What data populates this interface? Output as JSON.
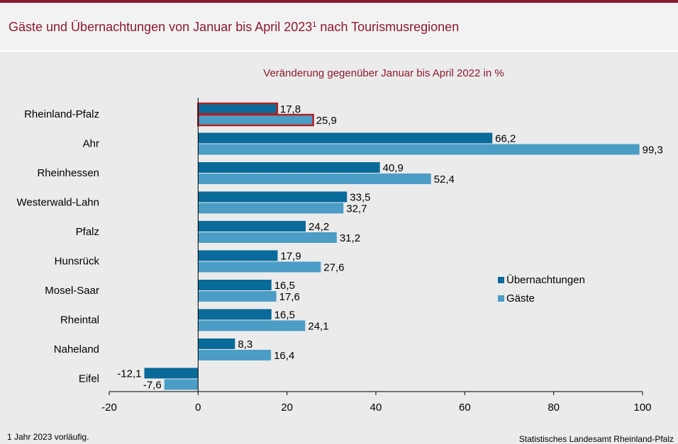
{
  "header": {
    "title": "Gäste und Übernachtungen von Januar bis April 2023",
    "footnote_mark": "1",
    "title_suffix": " nach Tourismusregionen"
  },
  "footer": {
    "note": "1 Jahr  2023  vorläufig.",
    "source": "Statistisches Landesamt  Rheinland-Pfalz"
  },
  "colors": {
    "uebernachtungen": "#0a6a9a",
    "gaeste": "#4b9dc5",
    "highlight_border": "#b22222"
  },
  "chart_data": {
    "type": "bar",
    "orientation": "horizontal",
    "title": "Veränderung  gegenüber  Januar bis April 2022 in %",
    "categories": [
      "Rheinland-Pfalz",
      "Ahr",
      "Rheinhessen",
      "Westerwald-Lahn",
      "Pfalz",
      "Hunsrück",
      "Mosel-Saar",
      "Rheintal",
      "Naheland",
      "Eifel"
    ],
    "series": [
      {
        "name": "Übernachtungen",
        "values": [
          17.8,
          66.2,
          40.9,
          33.5,
          24.2,
          17.9,
          16.5,
          16.5,
          8.3,
          -12.1
        ],
        "labels": [
          "17,8",
          "66,2",
          "40,9",
          "33,5",
          "24,2",
          "17,9",
          "16,5",
          "16,5",
          "8,3",
          "-12,1"
        ]
      },
      {
        "name": "Gäste",
        "values": [
          25.9,
          99.3,
          52.4,
          32.7,
          31.2,
          27.6,
          17.6,
          24.1,
          16.4,
          -7.6
        ],
        "labels": [
          "25,9",
          "99,3",
          "52,4",
          "32,7",
          "31,2",
          "27,6",
          "17,6",
          "24,1",
          "16,4",
          "-7,6"
        ]
      }
    ],
    "highlighted_category": "Rheinland-Pfalz",
    "xlim": [
      -20,
      100
    ],
    "xticks": [
      -20,
      0,
      20,
      40,
      60,
      80,
      100
    ],
    "grid": false,
    "legend_position": "right"
  }
}
